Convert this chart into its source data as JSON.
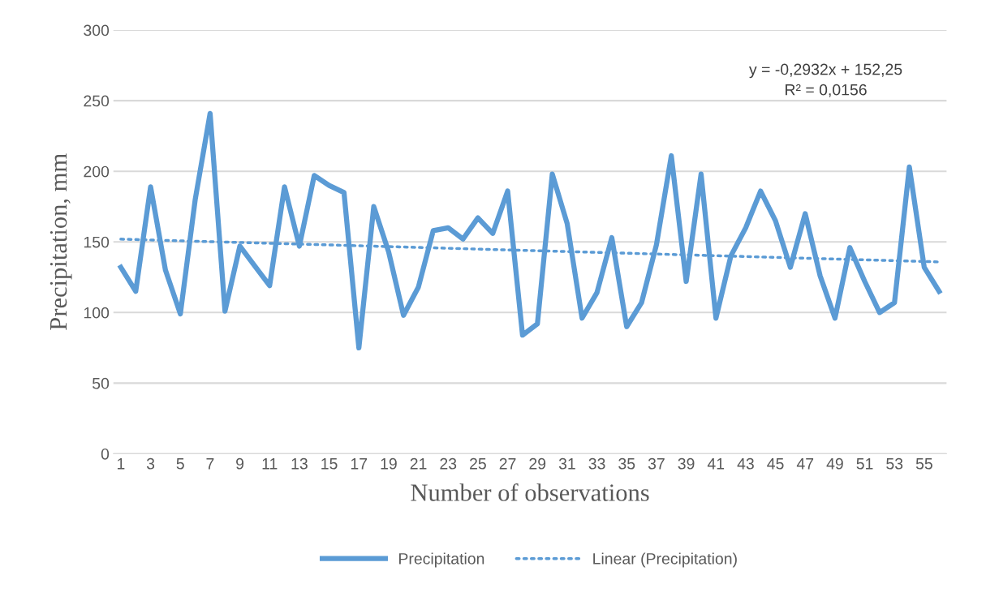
{
  "chart_data": {
    "type": "line",
    "xlabel": "Number of observations",
    "ylabel": "Precipitation, mm",
    "x": [
      1,
      2,
      3,
      4,
      5,
      6,
      7,
      8,
      9,
      10,
      11,
      12,
      13,
      14,
      15,
      16,
      17,
      18,
      19,
      20,
      21,
      22,
      23,
      24,
      25,
      26,
      27,
      28,
      29,
      30,
      31,
      32,
      33,
      34,
      35,
      36,
      37,
      38,
      39,
      40,
      41,
      42,
      43,
      44,
      45,
      46,
      47,
      48,
      49,
      50,
      51,
      52,
      53,
      54,
      55,
      56
    ],
    "series": [
      {
        "name": "Precipitation",
        "color": "#5b9bd5",
        "line_style": "solid",
        "values": [
          132,
          115,
          189,
          130,
          99,
          180,
          241,
          101,
          147,
          133,
          119,
          189,
          147,
          197,
          190,
          185,
          75,
          175,
          143,
          98,
          118,
          158,
          160,
          152,
          167,
          156,
          186,
          84,
          92,
          198,
          163,
          96,
          114,
          153,
          90,
          107,
          148,
          211,
          122,
          198,
          96,
          140,
          160,
          186,
          165,
          132,
          170,
          126,
          96,
          146,
          122,
          100,
          107,
          203,
          132,
          115
        ]
      },
      {
        "name": "Linear (Precipitation)",
        "color": "#5b9bd5",
        "line_style": "dotted",
        "x": [
          1,
          56
        ],
        "values": [
          151.96,
          135.83
        ]
      }
    ],
    "annotations": [
      {
        "text": "y = -0,2932x + 152,25\nR² = 0,0156"
      }
    ],
    "xlim": [
      0.5,
      56.5
    ],
    "xticks": [
      1,
      3,
      5,
      7,
      9,
      11,
      13,
      15,
      17,
      19,
      21,
      23,
      25,
      27,
      29,
      31,
      33,
      35,
      37,
      39,
      41,
      43,
      45,
      47,
      49,
      51,
      53,
      55
    ],
    "ylim": [
      0,
      300
    ],
    "yticks": [
      0,
      50,
      100,
      150,
      200,
      250,
      300
    ],
    "grid": "y",
    "legend": "bottom",
    "marker": "none"
  }
}
